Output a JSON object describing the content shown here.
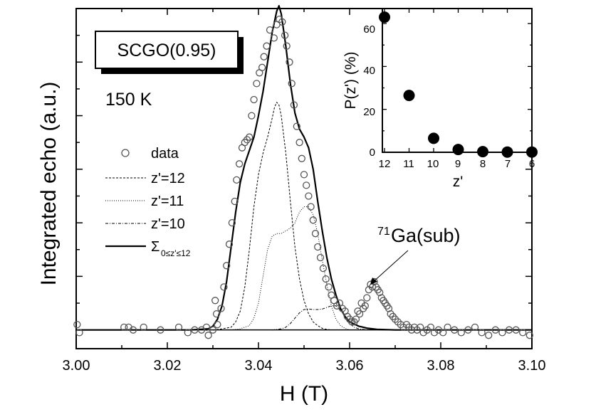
{
  "chart_data": [
    {
      "type": "line",
      "title": "",
      "xlabel": "H (T)",
      "ylabel": "Integrated echo (a.u.)",
      "xlim": [
        3.0,
        3.1
      ],
      "ylim": [
        -0.35,
        6.0
      ],
      "x_ticks": [
        "3.00",
        "3.02",
        "3.04",
        "3.06",
        "3.08",
        "3.10"
      ],
      "sample_label": "SCGO(0.95)",
      "temperature_label": "150 K",
      "legend": [
        {
          "key": "data",
          "label": "data",
          "style": "open-circle"
        },
        {
          "key": "z12",
          "label": "z'=12",
          "style": "dashed"
        },
        {
          "key": "z11",
          "label": "z'=11",
          "style": "dotted"
        },
        {
          "key": "z10",
          "label": "z'=10",
          "style": "dash-dot"
        },
        {
          "key": "sum",
          "label": "Σ",
          "sub": "0≤z'≤12",
          "style": "solid"
        }
      ],
      "annotation": {
        "superscript": "71",
        "text": "Ga(sub)"
      },
      "series": [
        {
          "name": "data",
          "x": [
            3.0002,
            3.0007,
            3.0105,
            3.0115,
            3.0125,
            3.0148,
            3.0185,
            3.0225,
            3.0245,
            3.026,
            3.0275,
            3.0286,
            3.029,
            3.03,
            3.0305,
            3.0308,
            3.031,
            3.0318,
            3.0324,
            3.033,
            3.0336,
            3.0342,
            3.0348,
            3.0352,
            3.0358,
            3.0364,
            3.037,
            3.0375,
            3.038,
            3.0385,
            3.039,
            3.0396,
            3.0402,
            3.0408,
            3.0412,
            3.0418,
            3.0425,
            3.0434,
            3.044,
            3.0446,
            3.0452,
            3.0458,
            3.0462,
            3.0468,
            3.0473,
            3.0478,
            3.0484,
            3.049,
            3.0495,
            3.05,
            3.0505,
            3.051,
            3.0515,
            3.052,
            3.0525,
            3.053,
            3.0536,
            3.0542,
            3.0548,
            3.0554,
            3.056,
            3.0566,
            3.0572,
            3.0578,
            3.0584,
            3.059,
            3.0595,
            3.06,
            3.0605,
            3.061,
            3.0614,
            3.0618,
            3.0622,
            3.0626,
            3.063,
            3.0634,
            3.0638,
            3.0642,
            3.0646,
            3.065,
            3.0654,
            3.0658,
            3.0662,
            3.0666,
            3.067,
            3.0674,
            3.0678,
            3.0682,
            3.0686,
            3.069,
            3.0695,
            3.07,
            3.0706,
            3.0712,
            3.0718,
            3.0725,
            3.073,
            3.0736,
            3.0742,
            3.0748,
            3.0755,
            3.0762,
            3.077,
            3.0778,
            3.0786,
            3.0795,
            3.0805,
            3.0815,
            3.083,
            3.0845,
            3.086,
            3.0875,
            3.089,
            3.0905,
            3.092,
            3.0935,
            3.095,
            3.0965,
            3.098,
            3.0995
          ],
          "y": [
            0.1,
            -0.05,
            0.05,
            0.05,
            0.0,
            0.05,
            0.0,
            0.05,
            -0.05,
            0.0,
            0.0,
            0.05,
            -0.1,
            0.0,
            0.55,
            0.3,
            0.1,
            0.4,
            0.8,
            1.2,
            1.6,
            2.0,
            2.4,
            2.8,
            3.1,
            3.4,
            3.5,
            3.55,
            3.6,
            4.0,
            4.3,
            4.6,
            4.8,
            4.9,
            5.1,
            5.3,
            5.6,
            5.45,
            5.7,
            5.8,
            5.75,
            5.5,
            5.3,
            5.0,
            4.6,
            4.2,
            3.8,
            3.5,
            3.2,
            2.9,
            2.7,
            2.5,
            2.3,
            2.05,
            1.8,
            1.55,
            1.35,
            1.15,
            0.95,
            0.8,
            0.65,
            0.55,
            0.45,
            0.5,
            0.4,
            0.35,
            0.25,
            0.2,
            0.15,
            0.15,
            0.2,
            0.35,
            0.3,
            0.5,
            0.4,
            0.45,
            0.6,
            0.75,
            0.85,
            0.8,
            0.9,
            0.8,
            0.75,
            0.7,
            0.6,
            0.55,
            0.5,
            0.45,
            0.4,
            0.3,
            0.25,
            0.2,
            0.15,
            0.1,
            0.05,
            0.1,
            0.05,
            0.0,
            0.05,
            0.0,
            0.05,
            -0.05,
            0.0,
            0.05,
            -0.05,
            0.0,
            -0.05,
            0.05,
            0.0,
            -0.05,
            0.0,
            0.05,
            -0.05,
            -0.1,
            0.0,
            -0.05,
            0.0,
            0.0,
            -0.05,
            -0.1
          ]
        },
        {
          "name": "z'=12",
          "x": [
            3.03,
            3.032,
            3.034,
            3.035,
            3.036,
            3.037,
            3.038,
            3.039,
            3.04,
            3.041,
            3.042,
            3.043,
            3.0435,
            3.044,
            3.0445,
            3.045,
            3.046,
            3.047,
            3.048,
            3.049,
            3.05,
            3.051,
            3.052,
            3.053,
            3.054,
            3.055,
            3.056
          ],
          "y": [
            0.0,
            0.02,
            0.05,
            0.15,
            0.35,
            0.8,
            1.5,
            2.3,
            2.9,
            3.3,
            3.6,
            3.95,
            4.15,
            4.25,
            4.2,
            4.0,
            3.3,
            2.4,
            1.55,
            0.95,
            0.55,
            0.3,
            0.15,
            0.08,
            0.03,
            0.01,
            0.0
          ]
        },
        {
          "name": "z'=11",
          "x": [
            3.034,
            3.036,
            3.038,
            3.039,
            3.04,
            3.041,
            3.042,
            3.043,
            3.044,
            3.045,
            3.046,
            3.047,
            3.048,
            3.049,
            3.05,
            3.051,
            3.052,
            3.053,
            3.054,
            3.055,
            3.056,
            3.057,
            3.058,
            3.059,
            3.06
          ],
          "y": [
            0.0,
            0.02,
            0.08,
            0.22,
            0.5,
            1.0,
            1.5,
            1.75,
            1.8,
            1.8,
            1.85,
            1.9,
            2.0,
            2.2,
            2.3,
            2.3,
            2.15,
            1.8,
            1.3,
            0.85,
            0.45,
            0.2,
            0.08,
            0.03,
            0.0
          ]
        },
        {
          "name": "z'=10",
          "x": [
            3.043,
            3.045,
            3.046,
            3.047,
            3.048,
            3.049,
            3.05,
            3.051,
            3.052,
            3.053,
            3.054,
            3.055,
            3.056,
            3.057,
            3.058,
            3.059,
            3.06,
            3.061,
            3.062,
            3.064
          ],
          "y": [
            0.0,
            0.02,
            0.05,
            0.12,
            0.22,
            0.32,
            0.38,
            0.39,
            0.38,
            0.38,
            0.39,
            0.42,
            0.45,
            0.45,
            0.38,
            0.25,
            0.12,
            0.05,
            0.02,
            0.0
          ]
        },
        {
          "name": "sum",
          "x": [
            3.0,
            3.025,
            3.029,
            3.03,
            3.031,
            3.032,
            3.033,
            3.034,
            3.035,
            3.036,
            3.037,
            3.038,
            3.039,
            3.04,
            3.041,
            3.042,
            3.043,
            3.044,
            3.0445,
            3.045,
            3.046,
            3.047,
            3.048,
            3.049,
            3.05,
            3.051,
            3.052,
            3.053,
            3.054,
            3.055,
            3.056,
            3.057,
            3.058,
            3.059,
            3.06,
            3.062,
            3.064,
            3.066,
            3.07,
            3.1
          ],
          "y": [
            0.0,
            0.0,
            0.02,
            0.07,
            0.2,
            0.45,
            0.9,
            1.55,
            2.2,
            2.75,
            3.1,
            3.35,
            3.6,
            4.0,
            4.45,
            5.0,
            5.55,
            5.95,
            6.05,
            5.9,
            5.3,
            4.6,
            4.05,
            3.75,
            3.6,
            3.4,
            3.0,
            2.4,
            1.85,
            1.35,
            0.95,
            0.65,
            0.4,
            0.25,
            0.15,
            0.07,
            0.03,
            0.01,
            0.0,
            0.0
          ]
        }
      ]
    },
    {
      "type": "scatter",
      "title": "",
      "xlabel": "z'",
      "ylabel": "P(z') (%)",
      "x_reversed": true,
      "xlim": [
        12,
        6
      ],
      "ylim": [
        0,
        67
      ],
      "x_ticks": [
        "12",
        "11",
        "10",
        "9",
        "8",
        "7",
        "6"
      ],
      "y_ticks": [
        "0",
        "20",
        "40",
        "60"
      ],
      "x": [
        12,
        11,
        10,
        9,
        8,
        7,
        6
      ],
      "y": [
        63,
        26.5,
        6.5,
        1.3,
        0.3,
        0.1,
        0.1
      ]
    }
  ]
}
